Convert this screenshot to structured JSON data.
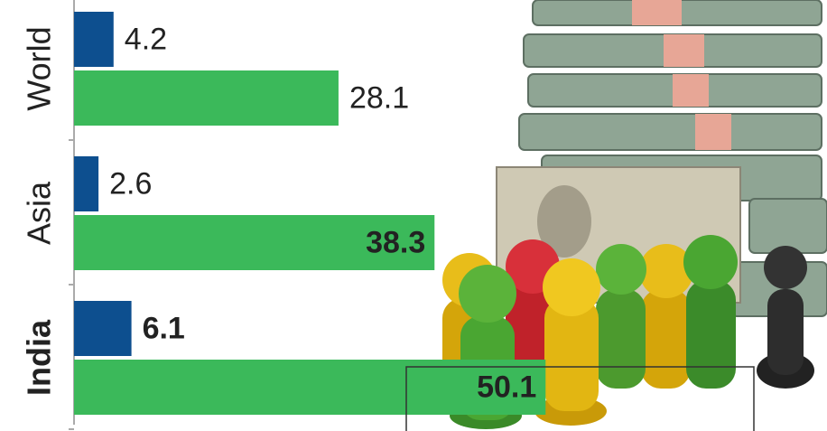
{
  "chart_data": {
    "type": "hbar",
    "categories": [
      "World",
      "Asia",
      "India"
    ],
    "series": [
      {
        "color": "#0d4f8f",
        "values": [
          4.2,
          2.6,
          6.1
        ]
      },
      {
        "color": "#3bb95a",
        "values": [
          28.1,
          38.3,
          50.1
        ]
      }
    ],
    "xlim": [
      0,
      80
    ]
  }
}
